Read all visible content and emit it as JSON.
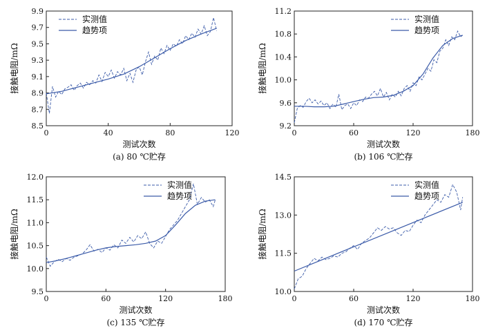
{
  "chart_data": [
    {
      "type": "line",
      "caption": "(a) 80 ℃贮存",
      "xlabel": "测试次数",
      "ylabel": "接触电阻/mΩ",
      "xlim": [
        0,
        120
      ],
      "ylim": [
        8.5,
        9.9
      ],
      "xticks": [
        "0",
        "40",
        "80",
        "120"
      ],
      "yticks": [
        "8.5",
        "8.7",
        "8.9",
        "9.1",
        "9.3",
        "9.5",
        "9.7",
        "9.9"
      ],
      "legend": [
        "实测值",
        "趋势项"
      ],
      "legend_position": "top-left",
      "series": [
        {
          "name": "实测值",
          "style": "dashed",
          "x": [
            0,
            2,
            4,
            6,
            8,
            10,
            12,
            14,
            16,
            18,
            20,
            22,
            24,
            26,
            28,
            30,
            32,
            34,
            36,
            38,
            40,
            42,
            44,
            46,
            48,
            50,
            52,
            54,
            56,
            58,
            60,
            62,
            64,
            66,
            68,
            70,
            72,
            74,
            76,
            78,
            80,
            82,
            84,
            86,
            88,
            90,
            92,
            94,
            96,
            98,
            100,
            102,
            104,
            106,
            108,
            110
          ],
          "y": [
            8.9,
            8.65,
            8.98,
            8.85,
            8.92,
            8.88,
            8.95,
            8.97,
            9.0,
            8.93,
            8.99,
            9.02,
            8.96,
            9.03,
            9.0,
            9.05,
            9.02,
            9.12,
            9.04,
            9.15,
            9.1,
            9.18,
            9.08,
            9.16,
            9.12,
            9.2,
            9.05,
            9.14,
            9.03,
            9.18,
            9.22,
            9.12,
            9.28,
            9.4,
            9.25,
            9.35,
            9.3,
            9.45,
            9.38,
            9.48,
            9.42,
            9.5,
            9.47,
            9.55,
            9.5,
            9.6,
            9.55,
            9.63,
            9.58,
            9.68,
            9.62,
            9.72,
            9.6,
            9.65,
            9.82,
            9.66
          ]
        },
        {
          "name": "趋势项",
          "style": "solid",
          "x": [
            0,
            10,
            20,
            30,
            40,
            50,
            60,
            70,
            80,
            90,
            100,
            110
          ],
          "y": [
            8.89,
            8.92,
            8.97,
            9.02,
            9.07,
            9.13,
            9.22,
            9.33,
            9.44,
            9.54,
            9.62,
            9.69
          ]
        }
      ]
    },
    {
      "type": "line",
      "caption": "(b) 106 ℃贮存",
      "xlabel": "测试次数",
      "ylabel": "接触电阻/mΩ",
      "xlim": [
        0,
        180
      ],
      "ylim": [
        9.2,
        11.2
      ],
      "xticks": [
        "0",
        "60",
        "120",
        "180"
      ],
      "yticks": [
        "9.2",
        "9.6",
        "10.0",
        "10.4",
        "10.8",
        "11.2"
      ],
      "legend": [
        "实测值",
        "趋势项"
      ],
      "legend_position": "top-right",
      "series": [
        {
          "name": "实测值",
          "style": "dashed",
          "x": [
            0,
            3,
            6,
            9,
            12,
            15,
            18,
            21,
            24,
            27,
            30,
            33,
            36,
            39,
            42,
            45,
            48,
            51,
            54,
            57,
            60,
            63,
            66,
            69,
            72,
            75,
            78,
            81,
            84,
            87,
            90,
            93,
            96,
            99,
            102,
            105,
            108,
            111,
            114,
            117,
            120,
            123,
            126,
            129,
            132,
            135,
            138,
            141,
            144,
            147,
            150,
            153,
            156,
            159,
            162,
            165,
            168,
            170
          ],
          "y": [
            9.25,
            9.5,
            9.55,
            9.52,
            9.62,
            9.68,
            9.6,
            9.65,
            9.58,
            9.63,
            9.55,
            9.6,
            9.5,
            9.58,
            9.52,
            9.75,
            9.48,
            9.55,
            9.58,
            9.5,
            9.6,
            9.55,
            9.65,
            9.62,
            9.7,
            9.68,
            9.75,
            9.8,
            9.72,
            9.85,
            9.7,
            9.78,
            9.65,
            9.75,
            9.7,
            9.8,
            9.72,
            9.85,
            9.9,
            9.8,
            9.95,
            9.9,
            10.05,
            10.0,
            10.1,
            10.2,
            10.15,
            10.35,
            10.3,
            10.5,
            10.55,
            10.7,
            10.6,
            10.75,
            10.7,
            10.85,
            10.75,
            10.78
          ]
        },
        {
          "name": "趋势项",
          "style": "solid",
          "x": [
            0,
            10,
            20,
            30,
            40,
            50,
            60,
            70,
            80,
            90,
            100,
            110,
            120,
            130,
            140,
            150,
            160,
            170
          ],
          "y": [
            9.54,
            9.54,
            9.53,
            9.53,
            9.54,
            9.58,
            9.62,
            9.66,
            9.69,
            9.7,
            9.73,
            9.8,
            9.9,
            10.1,
            10.38,
            10.6,
            10.72,
            10.78
          ]
        }
      ]
    },
    {
      "type": "line",
      "caption": "(c) 135 ℃贮存",
      "xlabel": "测试次数",
      "ylabel": "接触电阻/mΩ",
      "xlim": [
        0,
        180
      ],
      "ylim": [
        9.5,
        12.0
      ],
      "xticks": [
        "0",
        "60",
        "120",
        "180"
      ],
      "yticks": [
        "9.5",
        "10.0",
        "10.5",
        "11.0",
        "11.5",
        "12.0"
      ],
      "legend": [
        "实测值",
        "趋势项"
      ],
      "legend_position": "top-right",
      "series": [
        {
          "name": "实测值",
          "style": "dashed",
          "x": [
            0,
            4,
            8,
            12,
            16,
            20,
            24,
            28,
            32,
            36,
            40,
            44,
            48,
            52,
            56,
            60,
            64,
            68,
            72,
            76,
            80,
            84,
            88,
            92,
            96,
            100,
            104,
            108,
            112,
            116,
            120,
            124,
            128,
            132,
            136,
            140,
            144,
            148,
            152,
            156,
            160,
            164,
            168,
            170
          ],
          "y": [
            10.25,
            10.05,
            10.15,
            10.2,
            10.15,
            10.22,
            10.18,
            10.25,
            10.28,
            10.32,
            10.4,
            10.52,
            10.38,
            10.42,
            10.35,
            10.45,
            10.4,
            10.52,
            10.45,
            10.62,
            10.55,
            10.68,
            10.58,
            10.72,
            10.65,
            10.8,
            10.55,
            10.45,
            10.6,
            10.55,
            10.7,
            10.85,
            10.95,
            11.05,
            11.2,
            11.35,
            11.5,
            11.85,
            11.4,
            11.55,
            11.45,
            11.5,
            11.35,
            11.5
          ]
        },
        {
          "name": "趋势项",
          "style": "solid",
          "x": [
            0,
            10,
            20,
            30,
            40,
            50,
            60,
            70,
            80,
            90,
            100,
            110,
            120,
            130,
            140,
            150,
            160,
            170
          ],
          "y": [
            10.13,
            10.17,
            10.22,
            10.28,
            10.34,
            10.4,
            10.45,
            10.48,
            10.5,
            10.52,
            10.55,
            10.6,
            10.72,
            10.95,
            11.2,
            11.38,
            11.47,
            11.5
          ]
        }
      ]
    },
    {
      "type": "line",
      "caption": "(d) 170 ℃贮存",
      "xlabel": "测试次数",
      "ylabel": "接触电阻/mΩ",
      "xlim": [
        0,
        180
      ],
      "ylim": [
        10.0,
        14.5
      ],
      "xticks": [
        "0",
        "60",
        "120",
        "180"
      ],
      "yticks": [
        "10.0",
        "11.5",
        "13.0",
        "14.5"
      ],
      "legend": [
        "实测值",
        "趋势项"
      ],
      "legend_position": "top-right",
      "series": [
        {
          "name": "实测值",
          "style": "dashed",
          "x": [
            0,
            4,
            8,
            12,
            16,
            20,
            24,
            28,
            32,
            36,
            40,
            44,
            48,
            52,
            56,
            60,
            64,
            68,
            72,
            76,
            80,
            84,
            88,
            92,
            96,
            100,
            104,
            108,
            112,
            116,
            120,
            124,
            128,
            132,
            136,
            140,
            144,
            148,
            152,
            156,
            160,
            164,
            168,
            170
          ],
          "y": [
            10.1,
            10.5,
            10.6,
            10.9,
            11.1,
            11.3,
            11.2,
            11.35,
            11.25,
            11.3,
            11.4,
            11.35,
            11.5,
            11.55,
            11.7,
            11.8,
            11.65,
            11.9,
            12.0,
            12.1,
            12.3,
            12.5,
            12.4,
            12.55,
            12.45,
            12.5,
            12.3,
            12.2,
            12.4,
            12.35,
            12.6,
            12.8,
            12.7,
            13.0,
            13.2,
            13.4,
            13.6,
            13.5,
            13.8,
            13.7,
            14.2,
            13.9,
            13.2,
            13.7
          ]
        },
        {
          "name": "趋势项",
          "style": "solid",
          "x": [
            0,
            170
          ],
          "y": [
            10.8,
            13.5
          ]
        }
      ]
    }
  ]
}
